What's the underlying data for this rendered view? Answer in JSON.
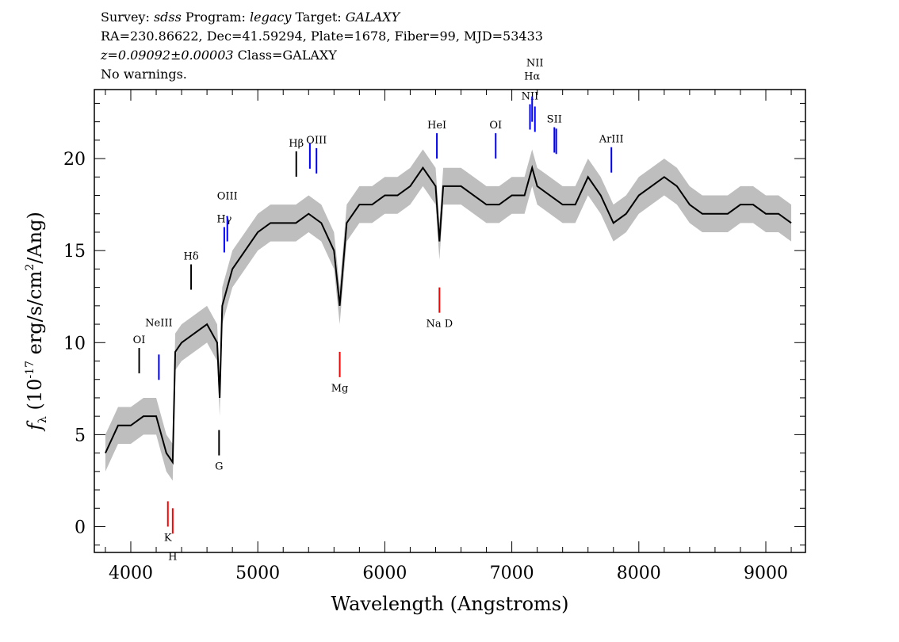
{
  "header": {
    "line1": {
      "a": "Survey: ",
      "b": "sdss",
      "c": " Program: ",
      "d": "legacy",
      "e": " Target: ",
      "f": "GALAXY"
    },
    "line2": "RA=230.86622, Dec=41.59294, Plate=1678, Fiber=99, MJD=53433",
    "line3": {
      "z": "z=0.09092±0.00003",
      "cls": " Class=GALAXY"
    },
    "line4": "No warnings."
  },
  "chart_data": {
    "type": "line",
    "xlabel": "Wavelength (Angstroms)",
    "ylabel": "f_λ (10^-17 erg/s/cm^2/Ang)",
    "xlim": [
      3713,
      9312
    ],
    "ylim": [
      -1.4,
      23.75
    ],
    "xticks": [
      4000,
      5000,
      6000,
      7000,
      8000,
      9000
    ],
    "yticks": [
      0,
      5,
      10,
      15,
      20
    ],
    "colors": {
      "flux": "#000000",
      "error_band": "#bebebe",
      "emission": "#0000ff",
      "absorption": "#ff0000",
      "other": "#000000"
    },
    "flux": {
      "x": [
        3800,
        3900,
        4000,
        4100,
        4200,
        4280,
        4330,
        4350,
        4400,
        4500,
        4600,
        4680,
        4700,
        4720,
        4800,
        4900,
        5000,
        5100,
        5200,
        5300,
        5400,
        5500,
        5600,
        5645,
        5700,
        5800,
        5900,
        6000,
        6100,
        6200,
        6300,
        6400,
        6430,
        6460,
        6500,
        6600,
        6700,
        6800,
        6900,
        7000,
        7100,
        7160,
        7200,
        7300,
        7400,
        7500,
        7600,
        7700,
        7800,
        7900,
        8000,
        8100,
        8200,
        8300,
        8400,
        8500,
        8600,
        8700,
        8800,
        8900,
        9000,
        9100,
        9200
      ],
      "y": [
        4,
        5.5,
        5.5,
        6,
        6,
        4,
        3.5,
        9.5,
        10,
        10.5,
        11,
        10,
        7,
        12,
        14,
        15,
        16,
        16.5,
        16.5,
        16.5,
        17,
        16.5,
        15,
        12,
        16.5,
        17.5,
        17.5,
        18,
        18,
        18.5,
        19.5,
        18.5,
        15.5,
        18.5,
        18.5,
        18.5,
        18,
        17.5,
        17.5,
        18,
        18,
        19.5,
        18.5,
        18,
        17.5,
        17.5,
        19,
        18,
        16.5,
        17,
        18,
        18.5,
        19,
        18.5,
        17.5,
        17,
        17,
        17,
        17.5,
        17.5,
        17,
        17,
        16.5
      ],
      "error": 1.0
    },
    "lines": [
      {
        "label": "OI",
        "x": 4066,
        "type": "other",
        "side": "top"
      },
      {
        "label": "NeIII",
        "x": 4221,
        "type": "emission",
        "side": "top"
      },
      {
        "label": "Hδ",
        "x": 4475,
        "type": "other",
        "side": "top"
      },
      {
        "label": "Hγ",
        "x": 4736,
        "type": "emission",
        "side": "top"
      },
      {
        "label": "OIII",
        "x": 4760,
        "type": "emission",
        "side": "top"
      },
      {
        "label": "Hβ",
        "x": 5303,
        "type": "other",
        "side": "top"
      },
      {
        "label": "OIII",
        "x": 5462,
        "type": "emission",
        "side": "top"
      },
      {
        "label": "",
        "x": 5410,
        "type": "emission",
        "side": "top"
      },
      {
        "label": "HeI",
        "x": 6410,
        "type": "emission",
        "side": "top"
      },
      {
        "label": "OI",
        "x": 6873,
        "type": "emission",
        "side": "top"
      },
      {
        "label": "NII",
        "x": 7143,
        "type": "emission",
        "side": "top"
      },
      {
        "label": "Hα",
        "x": 7160,
        "type": "emission",
        "side": "top"
      },
      {
        "label": "NII",
        "x": 7182,
        "type": "emission",
        "side": "top"
      },
      {
        "label": "SII",
        "x": 7335,
        "type": "emission",
        "side": "top"
      },
      {
        "label": "",
        "x": 7350,
        "type": "emission",
        "side": "top"
      },
      {
        "label": "ArIII",
        "x": 7784,
        "type": "emission",
        "side": "top"
      },
      {
        "label": "K",
        "x": 4292,
        "type": "absorption",
        "side": "bottom"
      },
      {
        "label": "H",
        "x": 4330,
        "type": "absorption",
        "side": "bottom"
      },
      {
        "label": "G",
        "x": 4695,
        "type": "other",
        "side": "bottom"
      },
      {
        "label": "Mg",
        "x": 5645,
        "type": "absorption",
        "side": "bottom"
      },
      {
        "label": "Na D",
        "x": 6430,
        "type": "absorption",
        "side": "bottom"
      }
    ]
  }
}
